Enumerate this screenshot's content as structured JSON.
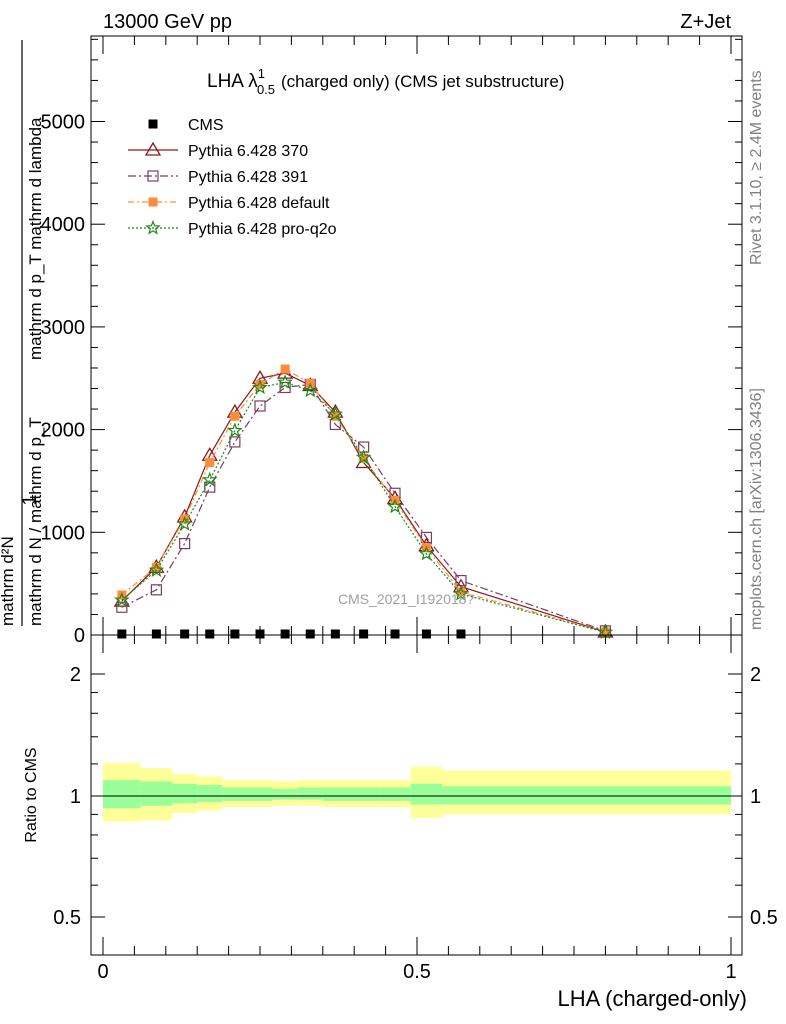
{
  "header": {
    "left": "13000 GeV pp",
    "right": "Z+Jet"
  },
  "side_labels": {
    "rivet": "Rivet 3.1.10, ≥ 2.4M events",
    "mcplots": "mcplots.cern.ch [arXiv:1306.3436]"
  },
  "chart_data": {
    "type": "line",
    "title_main": "LHA λ",
    "title_sup": "1",
    "title_sub": "0.5",
    "title_rest": "(charged only) (CMS jet substructure)",
    "watermark": "CMS_2021_I192018?",
    "xlabel": "LHA (charged-only)",
    "ylabel": {
      "frac_one": "1",
      "denominator": "mathrm d N / mathrm d p_T",
      "numerator_sup": "mathrm d^2N",
      "denominator_sub": "mathrm d p_T mathrm d lambda"
    },
    "ylabel_frac_num": "mathrm d²N",
    "ylabel_frac_den": "mathrm d p_T mathrm d lambda",
    "ylabel_one": "1",
    "ylabel_left": "mathrm d N / mathrm d p_T",
    "ylim": [
      0,
      5900
    ],
    "xlim": [
      -0.02,
      1.02
    ],
    "y_ticks": [
      {
        "v": 0,
        "label": "0"
      },
      {
        "v": 1000,
        "label": "1000"
      },
      {
        "v": 2000,
        "label": "2000"
      },
      {
        "v": 3000,
        "label": "3000"
      },
      {
        "v": 4000,
        "label": "4000"
      },
      {
        "v": 5000,
        "label": "5000"
      }
    ],
    "x_ticks": [
      {
        "v": 0,
        "label": "0"
      },
      {
        "v": 0.5,
        "label": "0.5"
      },
      {
        "v": 1,
        "label": "1"
      }
    ],
    "x": [
      0.03,
      0.085,
      0.13,
      0.17,
      0.21,
      0.25,
      0.29,
      0.33,
      0.37,
      0.415,
      0.465,
      0.515,
      0.57,
      0.8
    ],
    "cms_x": [
      0.03,
      0.085,
      0.13,
      0.17,
      0.21,
      0.25,
      0.29,
      0.33,
      0.37,
      0.415,
      0.465,
      0.515,
      0.57
    ],
    "cms_values": [
      0,
      0,
      0,
      0,
      0,
      0,
      0,
      0,
      0,
      0,
      0,
      0,
      0
    ],
    "series": [
      {
        "name": "CMS",
        "style": "cms",
        "color": "#000000"
      },
      {
        "name": "Pythia 6.428 370",
        "style": "triangle",
        "color": "#8b1a1a",
        "values": [
          330,
          660,
          1150,
          1750,
          2170,
          2500,
          2550,
          2430,
          2170,
          1680,
          1330,
          870,
          470,
          30
        ]
      },
      {
        "name": "Pythia 6.428 391",
        "style": "square-open",
        "color": "#7b3f5e",
        "values": [
          270,
          440,
          890,
          1440,
          1880,
          2230,
          2410,
          2440,
          2050,
          1830,
          1380,
          950,
          530,
          40
        ]
      },
      {
        "name": "Pythia 6.428 default",
        "style": "square-filled",
        "color": "#ff8c3c",
        "values": [
          390,
          660,
          1130,
          1680,
          2130,
          2440,
          2590,
          2450,
          2130,
          1720,
          1310,
          850,
          420,
          30
        ]
      },
      {
        "name": "Pythia 6.428 pro-q2o",
        "style": "star",
        "color": "#1a8a1a",
        "values": [
          340,
          630,
          1080,
          1510,
          1990,
          2410,
          2460,
          2380,
          2150,
          1730,
          1250,
          790,
          400,
          25
        ]
      }
    ],
    "ratio": {
      "ylabel": "Ratio to CMS",
      "ylim": [
        0.4,
        2.28
      ],
      "ticks": [
        {
          "v": 0.5,
          "label": "0.5"
        },
        {
          "v": 1,
          "label": "1"
        },
        {
          "v": 2,
          "label": "2"
        }
      ],
      "bins": [
        {
          "lo": 0.0,
          "hi": 0.06,
          "inner": [
            0.9,
            1.13
          ],
          "outer": [
            0.79,
            1.27
          ]
        },
        {
          "lo": 0.06,
          "hi": 0.11,
          "inner": [
            0.92,
            1.12
          ],
          "outer": [
            0.8,
            1.23
          ]
        },
        {
          "lo": 0.11,
          "hi": 0.15,
          "inner": [
            0.94,
            1.1
          ],
          "outer": [
            0.86,
            1.18
          ]
        },
        {
          "lo": 0.15,
          "hi": 0.19,
          "inner": [
            0.95,
            1.09
          ],
          "outer": [
            0.88,
            1.16
          ]
        },
        {
          "lo": 0.19,
          "hi": 0.23,
          "inner": [
            0.96,
            1.07
          ],
          "outer": [
            0.91,
            1.13
          ]
        },
        {
          "lo": 0.23,
          "hi": 0.27,
          "inner": [
            0.96,
            1.07
          ],
          "outer": [
            0.91,
            1.13
          ]
        },
        {
          "lo": 0.27,
          "hi": 0.31,
          "inner": [
            0.97,
            1.06
          ],
          "outer": [
            0.92,
            1.12
          ]
        },
        {
          "lo": 0.31,
          "hi": 0.35,
          "inner": [
            0.97,
            1.07
          ],
          "outer": [
            0.92,
            1.13
          ]
        },
        {
          "lo": 0.35,
          "hi": 0.39,
          "inner": [
            0.96,
            1.07
          ],
          "outer": [
            0.91,
            1.13
          ]
        },
        {
          "lo": 0.39,
          "hi": 0.44,
          "inner": [
            0.96,
            1.07
          ],
          "outer": [
            0.91,
            1.13
          ]
        },
        {
          "lo": 0.44,
          "hi": 0.49,
          "inner": [
            0.96,
            1.07
          ],
          "outer": [
            0.91,
            1.13
          ]
        },
        {
          "lo": 0.49,
          "hi": 0.54,
          "inner": [
            0.93,
            1.1
          ],
          "outer": [
            0.82,
            1.24
          ]
        },
        {
          "lo": 0.54,
          "hi": 1.0,
          "inner": [
            0.93,
            1.08
          ],
          "outer": [
            0.85,
            1.21
          ]
        }
      ]
    }
  }
}
